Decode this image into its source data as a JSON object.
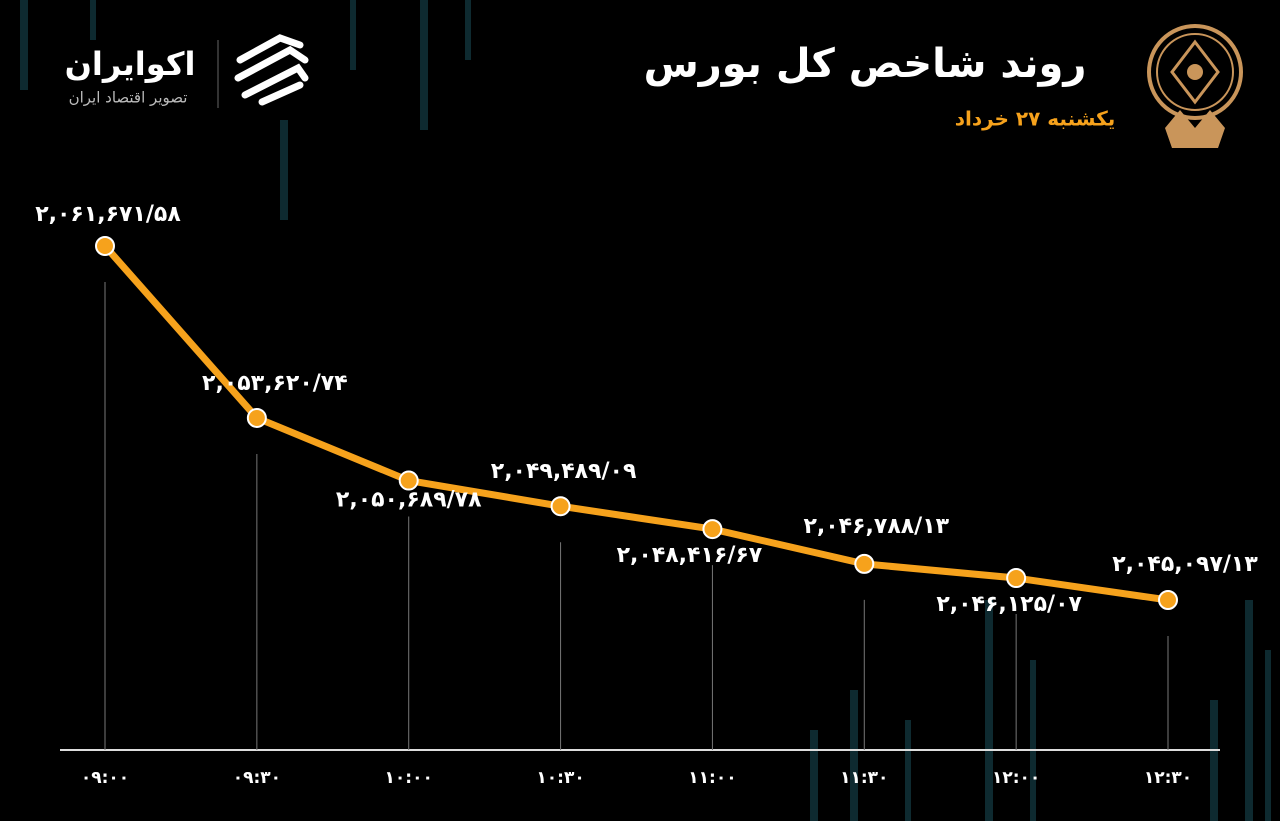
{
  "brand": {
    "name": "اکوایران",
    "tagline": "تصویر اقتصاد ایران"
  },
  "chart_data": {
    "type": "line",
    "title": "روند شاخص کل بورس",
    "subtitle": "یکشنبه ۲۷ خرداد",
    "categories": [
      "۰۹:۰۰",
      "۰۹:۳۰",
      "۱۰:۰۰",
      "۱۰:۳۰",
      "۱۱:۰۰",
      "۱۱:۳۰",
      "۱۲:۰۰",
      "۱۲:۳۰"
    ],
    "values": [
      2061671.58,
      2053620.74,
      2050689.78,
      2049489.09,
      2048416.67,
      2046788.13,
      2046125.07,
      2045097.13
    ],
    "value_labels": [
      "۲,۰۶۱,۶۷۱/۵۸",
      "۲,۰۵۳,۶۲۰/۷۴",
      "۲,۰۵۰,۶۸۹/۷۸",
      "۲,۰۴۹,۴۸۹/۰۹",
      "۲,۰۴۸,۴۱۶/۶۷",
      "۲,۰۴۶,۷۸۸/۱۳",
      "۲,۰۴۶,۱۲۵/۰۷",
      "۲,۰۴۵,۰۹۷/۱۳"
    ],
    "color": "#f6a21c"
  }
}
